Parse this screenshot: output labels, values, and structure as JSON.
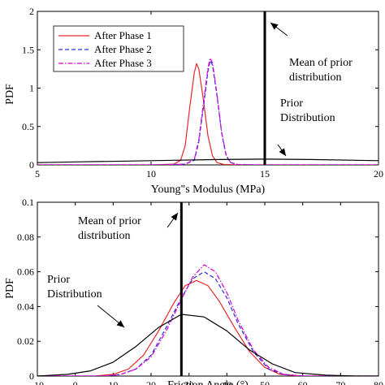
{
  "chart_data": [
    {
      "type": "line",
      "xlabel": "Young\"s Modulus (MPa)",
      "ylabel": "PDF",
      "xlim": [
        5,
        20
      ],
      "ylim": [
        0,
        2
      ],
      "xticks": [
        5,
        10,
        15,
        20
      ],
      "yticks": [
        0,
        0.5,
        1,
        1.5,
        2
      ],
      "xtick_labels": [
        "5",
        "10",
        "15",
        "20"
      ],
      "ytick_labels": [
        "0",
        "0.5",
        "1",
        "1.5",
        "2"
      ],
      "grid": false,
      "legend_position": "top-left",
      "series": [
        {
          "name": "After Phase 1",
          "color": "#e8272a",
          "style": "solid",
          "x": [
            5,
            10,
            11,
            11.3,
            11.5,
            11.7,
            11.9,
            12.0,
            12.1,
            12.3,
            12.5,
            12.7,
            12.9,
            13.2,
            14,
            20
          ],
          "y": [
            0,
            0,
            0.01,
            0.06,
            0.25,
            0.75,
            1.2,
            1.32,
            1.25,
            0.85,
            0.38,
            0.12,
            0.03,
            0.005,
            0,
            0
          ]
        },
        {
          "name": "After Phase 2",
          "color": "#2b2bd6",
          "style": "dash",
          "x": [
            5,
            10.5,
            11.5,
            11.9,
            12.1,
            12.3,
            12.5,
            12.6,
            12.7,
            12.9,
            13.1,
            13.3,
            13.5,
            13.8,
            14.5,
            20
          ],
          "y": [
            0,
            0,
            0.01,
            0.06,
            0.3,
            0.75,
            1.22,
            1.36,
            1.3,
            0.9,
            0.42,
            0.12,
            0.03,
            0.005,
            0,
            0
          ]
        },
        {
          "name": "After Phase 3",
          "color": "#d400d4",
          "style": "dashdot",
          "x": [
            5,
            10.5,
            11.5,
            11.9,
            12.1,
            12.3,
            12.5,
            12.6,
            12.7,
            12.9,
            13.1,
            13.3,
            13.5,
            13.8,
            14.5,
            20
          ],
          "y": [
            0,
            0,
            0.01,
            0.07,
            0.33,
            0.8,
            1.26,
            1.39,
            1.33,
            0.92,
            0.43,
            0.13,
            0.03,
            0.005,
            0,
            0
          ]
        },
        {
          "name": "",
          "color": "#000000",
          "style": "solid",
          "x": [
            5,
            7,
            9,
            11,
            13,
            15,
            17,
            19,
            20
          ],
          "y": [
            0.03,
            0.04,
            0.05,
            0.06,
            0.07,
            0.075,
            0.07,
            0.06,
            0.055
          ]
        }
      ],
      "vline": {
        "x": 15
      },
      "annotations": [
        {
          "lines": [
            "Mean of prior",
            "distribution"
          ]
        },
        {
          "lines": [
            "Prior",
            "Distribution"
          ]
        }
      ]
    },
    {
      "type": "line",
      "xlabel": "Friction Angle (°)",
      "ylabel": "PDF",
      "xlim": [
        -10,
        80
      ],
      "ylim": [
        0,
        0.1
      ],
      "xticks": [
        -10,
        0,
        10,
        20,
        30,
        40,
        50,
        60,
        70,
        80
      ],
      "yticks": [
        0,
        0.02,
        0.04,
        0.06,
        0.08,
        0.1
      ],
      "xtick_labels": [
        "-10",
        "0",
        "10",
        "20",
        "30",
        "40",
        "50",
        "60",
        "70",
        "80"
      ],
      "ytick_labels": [
        "0",
        "0.02",
        "0.04",
        "0.06",
        "0.08",
        "0.1"
      ],
      "grid": false,
      "series": [
        {
          "name": "After Phase 1",
          "color": "#e8272a",
          "style": "solid",
          "x": [
            -10,
            5,
            10,
            14,
            18,
            22,
            26,
            29,
            32,
            35,
            38,
            42,
            46,
            50,
            54,
            60,
            80
          ],
          "y": [
            0,
            0,
            0.001,
            0.004,
            0.012,
            0.026,
            0.042,
            0.052,
            0.055,
            0.052,
            0.043,
            0.028,
            0.014,
            0.005,
            0.001,
            0,
            0
          ]
        },
        {
          "name": "After Phase 2",
          "color": "#2b2bd6",
          "style": "dash",
          "x": [
            -10,
            8,
            12,
            16,
            20,
            24,
            28,
            31,
            34,
            37,
            40,
            43,
            47,
            51,
            55,
            60,
            80
          ],
          "y": [
            0,
            0,
            0.001,
            0.004,
            0.012,
            0.028,
            0.045,
            0.056,
            0.06,
            0.056,
            0.045,
            0.03,
            0.014,
            0.004,
            0.001,
            0,
            0
          ]
        },
        {
          "name": "After Phase 3",
          "color": "#d400d4",
          "style": "dashdot",
          "x": [
            -10,
            8,
            12,
            16,
            20,
            24,
            28,
            31,
            34,
            37,
            40,
            43,
            47,
            51,
            55,
            60,
            80
          ],
          "y": [
            0,
            0,
            0.001,
            0.004,
            0.011,
            0.026,
            0.044,
            0.057,
            0.064,
            0.06,
            0.048,
            0.032,
            0.015,
            0.005,
            0.001,
            0,
            0
          ]
        },
        {
          "name": "",
          "color": "#000000",
          "style": "solid",
          "x": [
            -10,
            -2,
            4,
            10,
            16,
            22,
            28,
            34,
            40,
            46,
            52,
            58,
            66,
            74,
            80
          ],
          "y": [
            0,
            0.001,
            0.003,
            0.008,
            0.017,
            0.028,
            0.0355,
            0.034,
            0.026,
            0.015,
            0.007,
            0.002,
            0.0005,
            0,
            0
          ]
        }
      ],
      "vline": {
        "x": 28
      },
      "annotations": [
        {
          "lines": [
            "Mean of prior",
            "distribution"
          ]
        },
        {
          "lines": [
            "Prior",
            "Distribution"
          ]
        }
      ]
    }
  ]
}
